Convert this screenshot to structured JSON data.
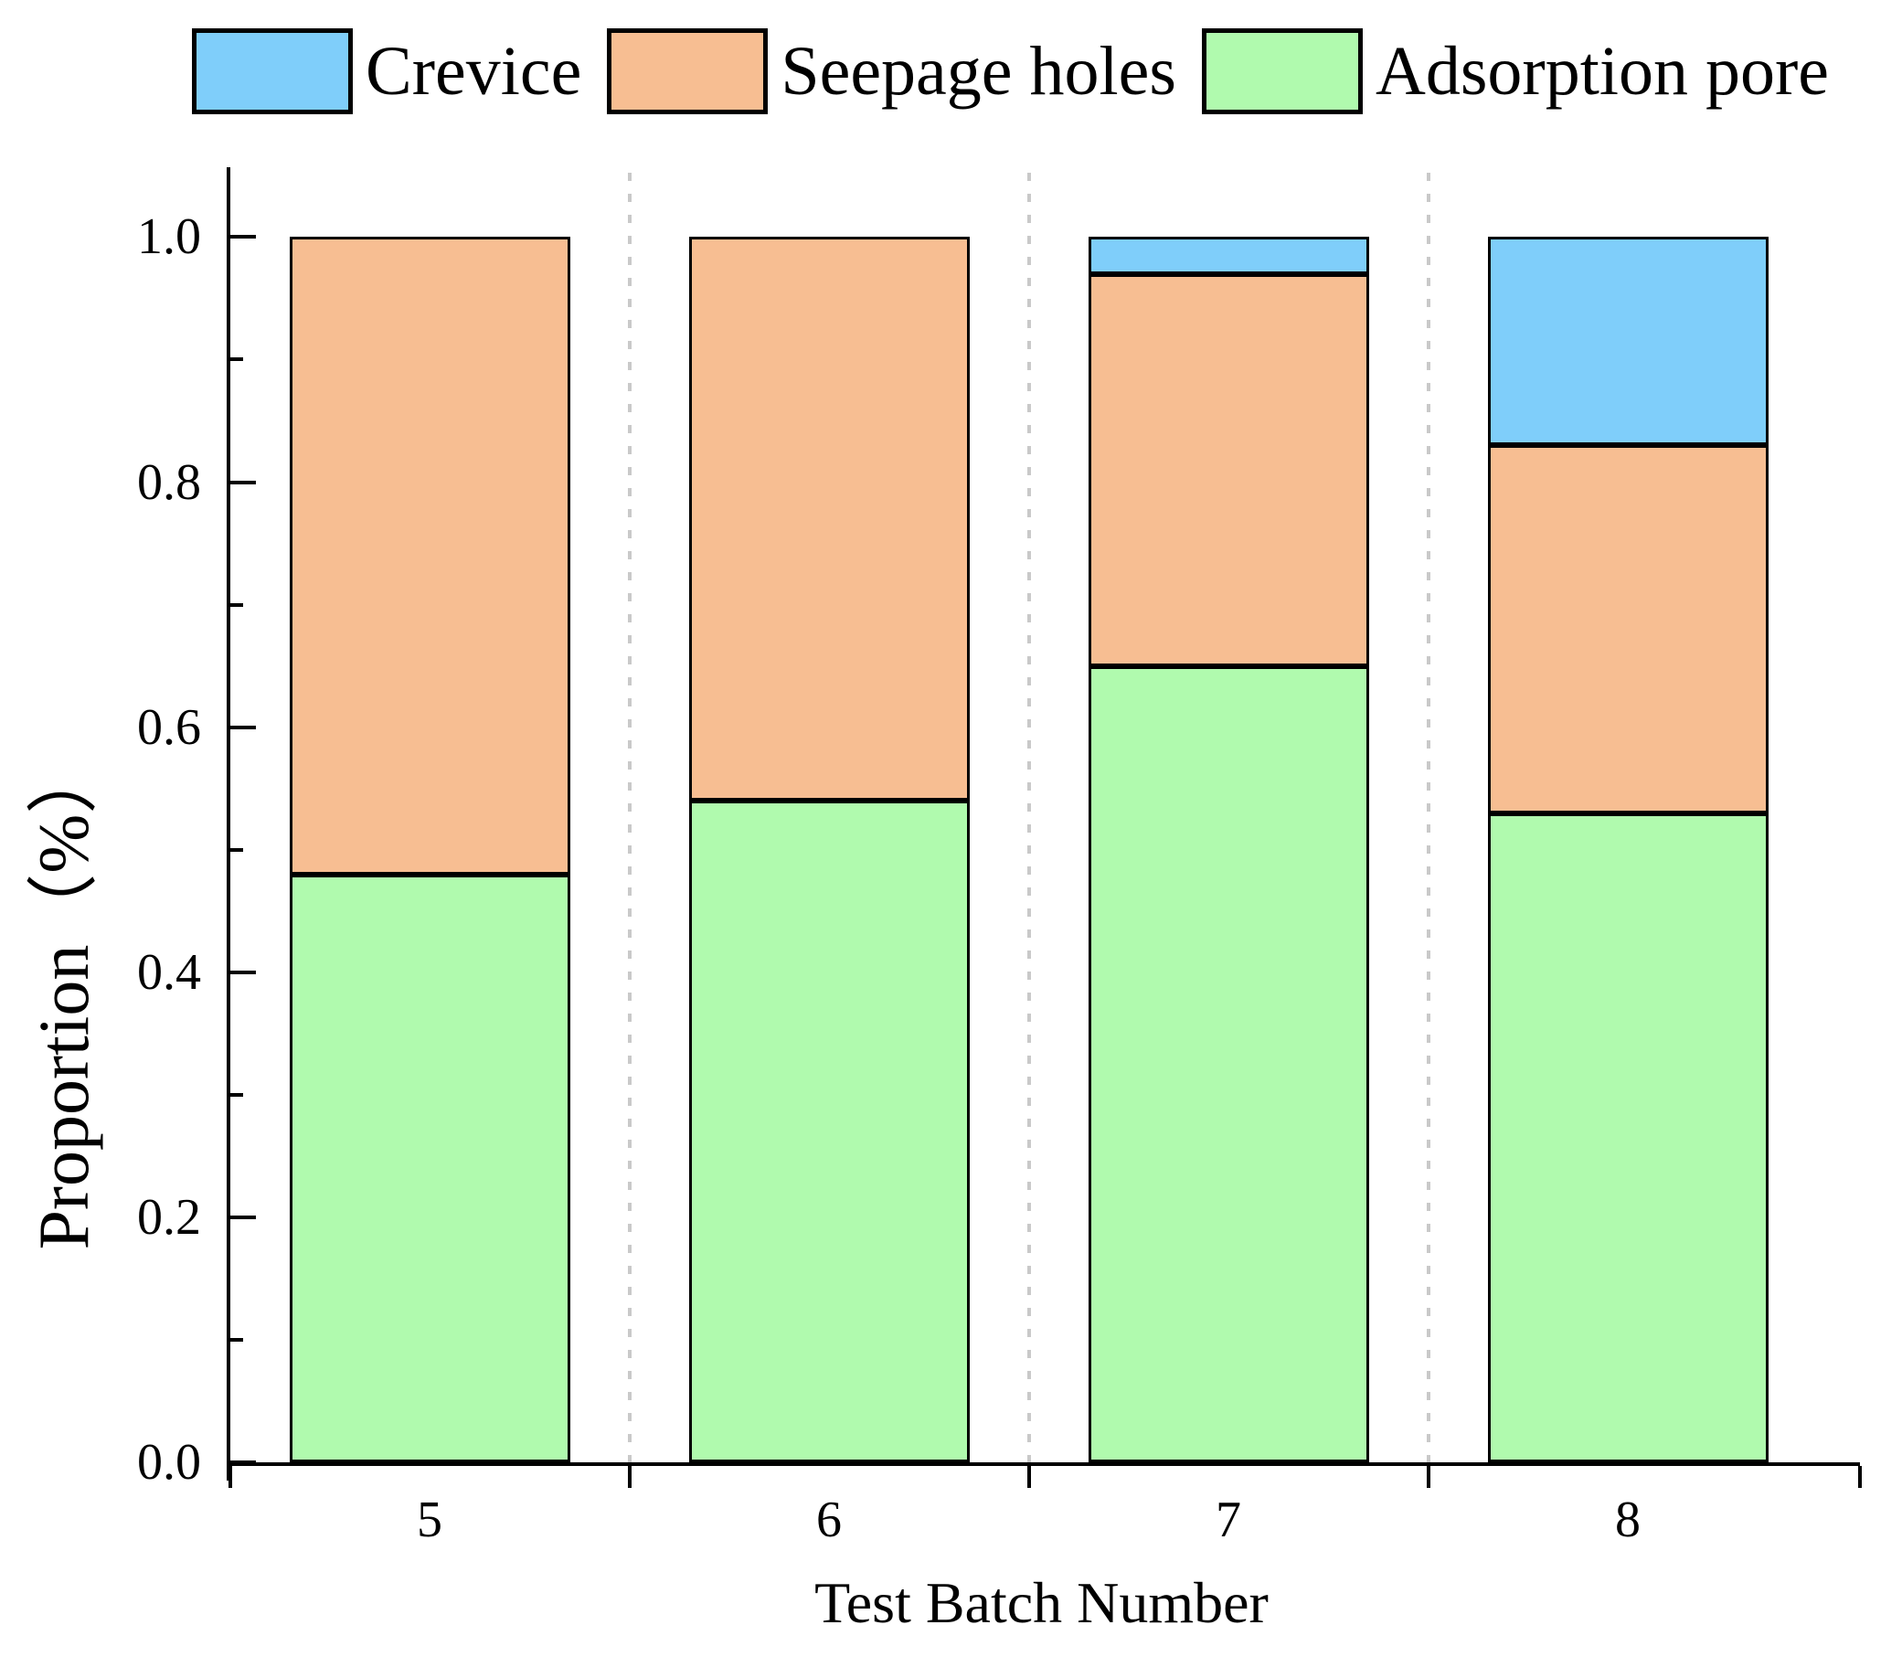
{
  "background": "#ffffff",
  "axis_color": "#000000",
  "chart_data": {
    "type": "bar",
    "stacked": true,
    "title": "",
    "xlabel": "Test Batch Number",
    "ylabel": "Proportion（%）",
    "categories": [
      "5",
      "6",
      "7",
      "8"
    ],
    "series": [
      {
        "name": "Adsorption pore",
        "color": "#b0faae",
        "values": [
          0.48,
          0.54,
          0.65,
          0.53
        ]
      },
      {
        "name": "Seepage holes",
        "color": "#f7be92",
        "values": [
          0.52,
          0.46,
          0.32,
          0.3
        ]
      },
      {
        "name": "Crevice",
        "color": "#7fcefa",
        "values": [
          0.0,
          0.0,
          0.03,
          0.17
        ]
      }
    ],
    "legend": {
      "position": "top",
      "items": [
        {
          "label": "Crevice",
          "color": "#7fcefa"
        },
        {
          "label": "Seepage holes",
          "color": "#f7be92"
        },
        {
          "label": "Adsorption pore",
          "color": "#b0faae"
        }
      ]
    },
    "y_axis": {
      "tick_labels": [
        "0.0",
        "0.2",
        "0.4",
        "0.6",
        "0.8",
        "1.0"
      ],
      "major_step": 0.2,
      "minor_step": 0.1,
      "range": [
        0,
        1.0
      ],
      "display_max": 1.057
    },
    "x_axis": {
      "tick_labels": [
        "5",
        "6",
        "7",
        "8"
      ]
    },
    "grid": {
      "vertical_dashed_between_categories": true,
      "color": "#c9c9c9"
    }
  }
}
